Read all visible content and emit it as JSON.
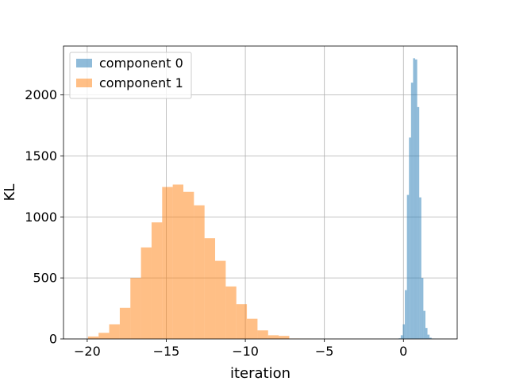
{
  "chart_data": {
    "type": "bar",
    "subtype": "overlapping-histogram",
    "title": "",
    "xlabel": "iteration",
    "ylabel": "KL",
    "xlim": [
      -21.5,
      3.4
    ],
    "ylim": [
      0,
      2400
    ],
    "xticks": [
      -20,
      -15,
      -10,
      -5,
      0
    ],
    "xtick_labels": [
      "−20",
      "−15",
      "−10",
      "−5",
      "0"
    ],
    "yticks": [
      0,
      500,
      1000,
      1500,
      2000
    ],
    "ytick_labels": [
      "0",
      "500",
      "1000",
      "1500",
      "2000"
    ],
    "grid": true,
    "legend_position": "top-left",
    "series": [
      {
        "name": "component 0",
        "color": "#1f77b4",
        "alpha": 0.5,
        "bin_edges": [
          -0.3,
          -0.17,
          -0.04,
          0.09,
          0.22,
          0.35,
          0.48,
          0.61,
          0.74,
          0.87,
          1.0,
          1.13,
          1.26,
          1.39,
          1.52,
          1.65,
          1.78,
          1.91,
          2.04,
          2.17,
          2.3
        ],
        "counts": [
          5,
          30,
          120,
          400,
          1180,
          1650,
          2100,
          2300,
          2290,
          1900,
          1160,
          500,
          230,
          90,
          35,
          10,
          3,
          1,
          0,
          0
        ]
      },
      {
        "name": "component 1",
        "color": "#ff7f0e",
        "alpha": 0.5,
        "bin_edges": [
          -19.95,
          -19.28,
          -18.61,
          -17.94,
          -17.27,
          -16.6,
          -15.93,
          -15.26,
          -14.59,
          -13.92,
          -13.25,
          -12.58,
          -11.91,
          -11.24,
          -10.57,
          -9.9,
          -9.23,
          -8.56,
          -7.89,
          -7.22,
          -6.55,
          -5.88
        ],
        "counts": [
          20,
          50,
          120,
          255,
          500,
          750,
          955,
          1245,
          1265,
          1205,
          1095,
          825,
          640,
          430,
          285,
          165,
          70,
          30,
          25,
          3,
          1
        ]
      }
    ]
  }
}
